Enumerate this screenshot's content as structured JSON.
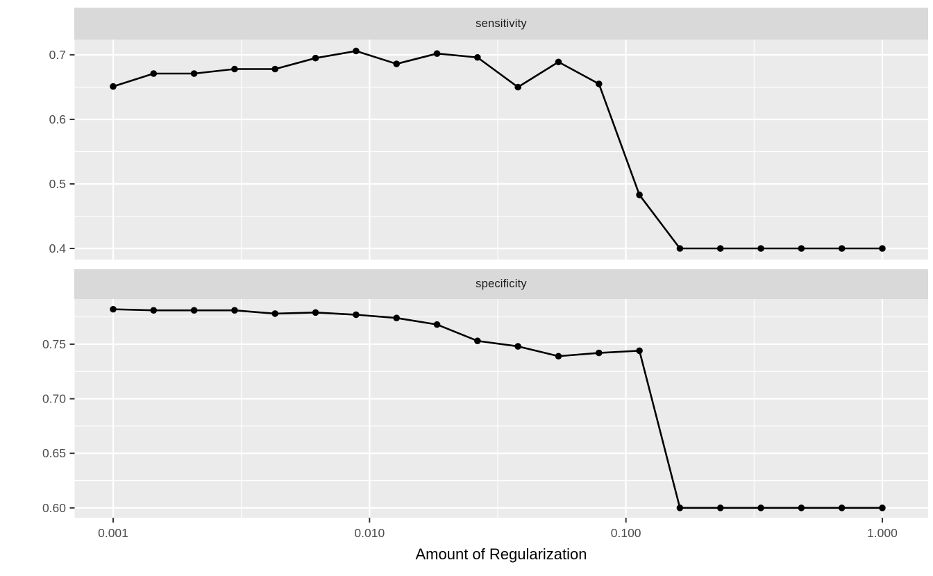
{
  "chart_data": {
    "type": "line",
    "title": "",
    "xlabel": "Amount of Regularization",
    "ylabel": "",
    "x_scale": "log10",
    "xlim": [
      0.001,
      1.0
    ],
    "grid": "on",
    "legend": "none",
    "x": [
      0.001,
      0.001438,
      0.002069,
      0.002976,
      0.004281,
      0.006158,
      0.008859,
      0.012743,
      0.01833,
      0.026367,
      0.037927,
      0.054556,
      0.078476,
      0.112884,
      0.162378,
      0.233572,
      0.335982,
      0.483293,
      0.695193,
      1.0
    ],
    "x_tick_values": [
      0.001,
      0.01,
      0.1,
      1.0
    ],
    "x_tick_labels": [
      "0.001",
      "0.010",
      "0.100",
      "1.000"
    ],
    "x_minor_values": [
      0.0031623,
      0.031623,
      0.31623
    ],
    "facets": [
      {
        "label": "sensitivity",
        "values": [
          0.651,
          0.671,
          0.671,
          0.678,
          0.678,
          0.695,
          0.706,
          0.686,
          0.702,
          0.696,
          0.65,
          0.689,
          0.655,
          0.483,
          0.4,
          0.4,
          0.4,
          0.4,
          0.4,
          0.4
        ],
        "y_tick_values": [
          0.7,
          0.6,
          0.5,
          0.4
        ],
        "y_tick_labels": [
          "0.7",
          "0.6",
          "0.5",
          "0.4"
        ],
        "y_minor_values": [
          0.65,
          0.55,
          0.45
        ],
        "ylim": [
          0.3828,
          0.7237
        ]
      },
      {
        "label": "specificity",
        "values": [
          0.782,
          0.781,
          0.781,
          0.781,
          0.778,
          0.779,
          0.777,
          0.774,
          0.768,
          0.753,
          0.748,
          0.739,
          0.742,
          0.744,
          0.6,
          0.6,
          0.6,
          0.6,
          0.6,
          0.6
        ],
        "y_tick_values": [
          0.75,
          0.7,
          0.65,
          0.6
        ],
        "y_tick_labels": [
          "0.75",
          "0.70",
          "0.65",
          "0.60"
        ],
        "y_minor_values": [
          0.775,
          0.725,
          0.675,
          0.625
        ],
        "ylim": [
          0.591,
          0.7913
        ]
      }
    ],
    "colors": {
      "line": "#000000",
      "point": "#000000",
      "panel_bg": "#ebebeb",
      "strip_bg": "#d9d9d9",
      "gridline": "#ffffff",
      "axis_text": "#4d4d4d",
      "tick_mark": "#333333",
      "strip_text": "#1a1a1a",
      "axis_title": "#000000"
    }
  }
}
